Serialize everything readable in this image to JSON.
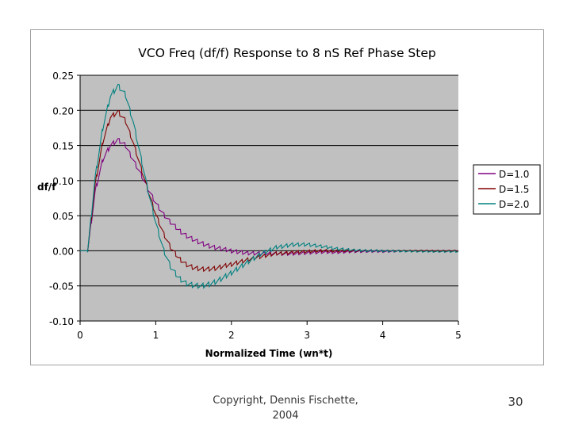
{
  "slide": {
    "copyright_line1": "Copyright, Dennis Fischette,",
    "copyright_line2": "2004",
    "page_number": "30"
  },
  "chart_data": {
    "type": "line",
    "title": "VCO Freq (df/f) Response to 8 nS Ref Phase Step",
    "xlabel": "Normalized Time (wn*t)",
    "ylabel": "df/f",
    "xlim": [
      0,
      5
    ],
    "ylim": [
      -0.1,
      0.25
    ],
    "x_ticks": [
      "0",
      "1",
      "2",
      "3",
      "4",
      "5"
    ],
    "y_ticks": [
      "-0.10",
      "-0.05",
      "0.00",
      "0.05",
      "0.10",
      "0.15",
      "0.20",
      "0.25"
    ],
    "grid": "horizontal",
    "plot_background": "#c0c0c0",
    "legend_position": "right",
    "ripple_amplitude_note": "sawtooth ripple",
    "x": [
      0.1,
      0.2,
      0.3,
      0.4,
      0.5,
      0.6,
      0.7,
      0.8,
      0.9,
      1.0,
      1.1,
      1.2,
      1.3,
      1.4,
      1.5,
      1.6,
      1.7,
      1.8,
      1.9,
      2.0,
      2.2,
      2.4,
      2.6,
      2.8,
      3.0,
      3.2,
      3.4,
      3.6,
      3.8,
      4.0,
      4.5,
      5.0
    ],
    "series": [
      {
        "name": "D=1.0",
        "color": "#800080",
        "values": [
          0.0,
          0.085,
          0.13,
          0.15,
          0.158,
          0.15,
          0.13,
          0.11,
          0.088,
          0.068,
          0.052,
          0.04,
          0.03,
          0.022,
          0.016,
          0.011,
          0.007,
          0.004,
          0.002,
          0.0,
          -0.003,
          -0.004,
          -0.004,
          -0.004,
          -0.003,
          -0.002,
          -0.002,
          -0.001,
          -0.001,
          -0.001,
          0.0,
          0.0
        ]
      },
      {
        "name": "D=1.5",
        "color": "#800000",
        "values": [
          0.0,
          0.095,
          0.155,
          0.19,
          0.198,
          0.185,
          0.155,
          0.12,
          0.085,
          0.052,
          0.025,
          0.004,
          -0.01,
          -0.019,
          -0.024,
          -0.026,
          -0.026,
          -0.025,
          -0.022,
          -0.019,
          -0.013,
          -0.008,
          -0.004,
          -0.002,
          -0.001,
          0.0,
          0.0,
          0.0,
          0.0,
          0.0,
          0.0,
          0.0
        ]
      },
      {
        "name": "D=2.0",
        "color": "#008080",
        "values": [
          0.0,
          0.105,
          0.175,
          0.22,
          0.235,
          0.222,
          0.185,
          0.135,
          0.085,
          0.04,
          0.002,
          -0.024,
          -0.038,
          -0.046,
          -0.049,
          -0.05,
          -0.048,
          -0.044,
          -0.038,
          -0.031,
          -0.017,
          -0.004,
          0.005,
          0.009,
          0.009,
          0.006,
          0.003,
          0.001,
          0.0,
          0.0,
          -0.001,
          -0.001
        ]
      }
    ]
  }
}
